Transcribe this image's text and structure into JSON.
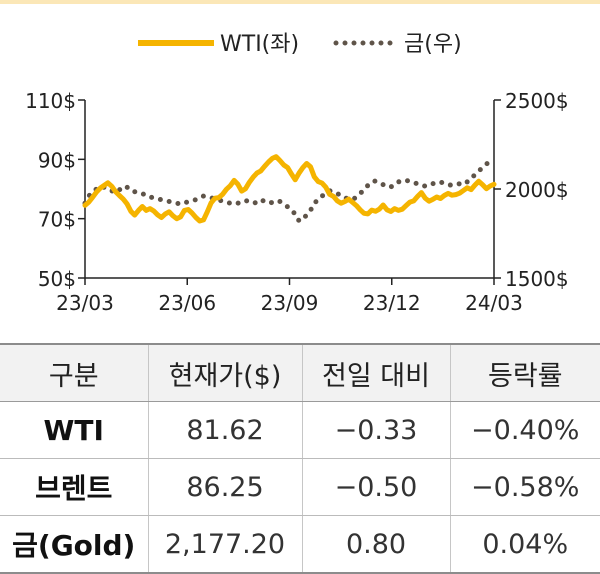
{
  "legend": {
    "wti": "WTI(좌)",
    "gold": "금(우)"
  },
  "chart_data": {
    "type": "line",
    "x_ticks": [
      "23/03",
      "23/06",
      "23/09",
      "23/12",
      "24/03"
    ],
    "y_left_ticks": [
      "110$",
      "90$",
      "70$",
      "50$"
    ],
    "y_right_ticks": [
      "2500$",
      "2000$",
      "1500$"
    ],
    "ylim_left": [
      50,
      110
    ],
    "ylim_right": [
      1500,
      2500
    ],
    "grid": false,
    "legend_position": "top-center",
    "colors": {
      "wti": "#f5b400",
      "gold": "#5f5449"
    },
    "series": [
      {
        "name": "WTI(좌)",
        "axis": "left",
        "style": "solid",
        "values": [
          74.5,
          75.6,
          77.2,
          79.0,
          80.3,
          81.2,
          82.1,
          80.9,
          79.1,
          77.8,
          76.6,
          75.0,
          72.5,
          71.2,
          72.8,
          74.1,
          72.8,
          73.4,
          72.6,
          71.3,
          70.4,
          71.6,
          72.3,
          71.0,
          70.0,
          70.6,
          72.8,
          73.1,
          71.9,
          70.4,
          69.2,
          69.6,
          72.3,
          75.3,
          76.9,
          77.1,
          78.2,
          79.9,
          81.1,
          82.9,
          81.6,
          79.3,
          80.1,
          82.3,
          84.0,
          85.4,
          86.1,
          87.7,
          89.1,
          90.3,
          90.9,
          89.6,
          88.1,
          87.2,
          85.1,
          83.1,
          85.4,
          87.2,
          88.6,
          87.5,
          84.1,
          82.5,
          82.0,
          80.6,
          78.2,
          77.5,
          76.0,
          75.2,
          75.8,
          76.6,
          75.5,
          74.4,
          73.0,
          71.8,
          71.6,
          72.9,
          72.5,
          73.2,
          74.6,
          73.0,
          72.4,
          73.4,
          72.8,
          73.2,
          74.4,
          75.6,
          76.0,
          77.5,
          78.8,
          76.9,
          75.9,
          76.5,
          77.3,
          76.8,
          77.8,
          78.5,
          77.9,
          78.1,
          78.6,
          79.5,
          80.4,
          79.8,
          81.3,
          82.6,
          81.5,
          80.1,
          81.0,
          81.6
        ]
      },
      {
        "name": "금(우)",
        "axis": "right",
        "style": "dotted",
        "values": [
          1920,
          1960,
          1985,
          2000,
          1995,
          2010,
          2000,
          1990,
          1980,
          1995,
          2015,
          2010,
          1990,
          1985,
          1980,
          1975,
          1960,
          1955,
          1950,
          1945,
          1940,
          1935,
          1930,
          1925,
          1920,
          1915,
          1920,
          1930,
          1935,
          1940,
          1950,
          1960,
          1955,
          1950,
          1945,
          1940,
          1930,
          1925,
          1920,
          1915,
          1920,
          1930,
          1935,
          1930,
          1920,
          1925,
          1940,
          1930,
          1920,
          1925,
          1935,
          1930,
          1915,
          1900,
          1880,
          1860,
          1820,
          1830,
          1855,
          1880,
          1920,
          1940,
          1960,
          1975,
          1990,
          1985,
          1975,
          1960,
          1950,
          1945,
          1940,
          1955,
          1975,
          1995,
          2020,
          2040,
          2045,
          2035,
          2025,
          2015,
          2010,
          2030,
          2040,
          2045,
          2050,
          2040,
          2035,
          2030,
          2025,
          2015,
          2020,
          2030,
          2035,
          2040,
          2030,
          2025,
          2020,
          2025,
          2030,
          2025,
          2040,
          2060,
          2080,
          2100,
          2120,
          2140,
          2155,
          2160
        ]
      }
    ]
  },
  "table": {
    "headers": [
      "구분",
      "현재가($)",
      "전일 대비",
      "등락률"
    ],
    "rows": [
      [
        "WTI",
        "81.62",
        "−0.33",
        "−0.40%"
      ],
      [
        "브렌트",
        "86.25",
        "−0.50",
        "−0.58%"
      ],
      [
        "금(Gold)",
        "2,177.20",
        "0.80",
        "0.04%"
      ]
    ]
  }
}
